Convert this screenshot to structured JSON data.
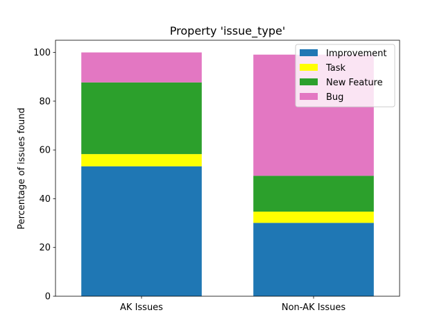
{
  "chart_data": {
    "type": "bar",
    "stacked": true,
    "title": "Property 'issue_type'",
    "xlabel": "",
    "ylabel": "Percentage of issues found",
    "categories": [
      "AK Issues",
      "Non-AK Issues"
    ],
    "ylim": [
      0,
      105
    ],
    "yticks": [
      0,
      20,
      40,
      60,
      80,
      100
    ],
    "grid": false,
    "legend_position": "top-right",
    "series": [
      {
        "name": "Improvement",
        "color": "#1f77b4",
        "values": [
          53.3,
          30.1
        ]
      },
      {
        "name": "Task",
        "color": "#ffff00",
        "values": [
          5.0,
          4.6
        ]
      },
      {
        "name": "New Feature",
        "color": "#2ca02c",
        "values": [
          29.4,
          14.7
        ]
      },
      {
        "name": "Bug",
        "color": "#e377c2",
        "values": [
          12.3,
          49.7
        ]
      }
    ]
  }
}
